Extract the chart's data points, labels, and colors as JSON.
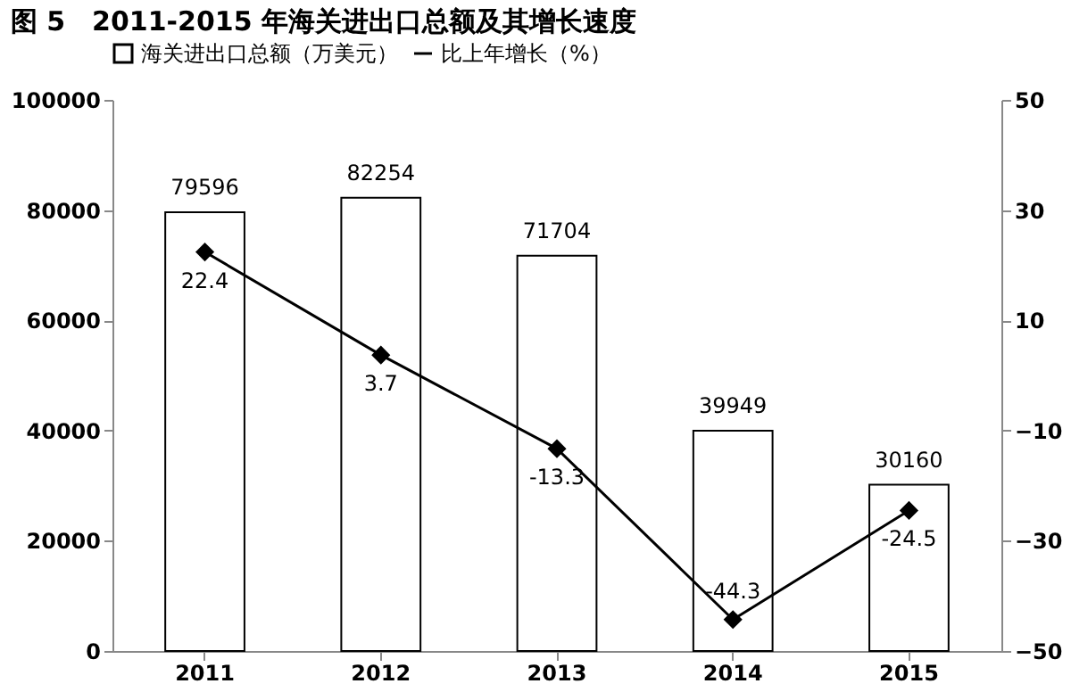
{
  "chart_data": {
    "type": "bar",
    "title": "图 5　2011-2015 年海关进出口总额及其增长速度",
    "categories": [
      "2011",
      "2012",
      "2013",
      "2014",
      "2015"
    ],
    "series": [
      {
        "name": "海关进出口总额（万美元）",
        "color": "#ffffff",
        "values": [
          79596,
          82254,
          71704,
          39949,
          30160
        ]
      },
      {
        "name": "比上年增长（%）",
        "type": "line",
        "axis": "y2",
        "color": "#000000",
        "values": [
          22.4,
          3.7,
          -13.3,
          -44.3,
          -24.5
        ]
      }
    ],
    "ylim": [
      0,
      100000
    ],
    "yticks": [
      0,
      20000,
      40000,
      60000,
      80000,
      100000
    ],
    "y2lim": [
      -50,
      50
    ],
    "y2ticks": [
      -50,
      -30,
      -10,
      10,
      30,
      50
    ],
    "data_labels": true,
    "legend": "top",
    "grid": false,
    "marker": "diamond",
    "line_style": "solid"
  }
}
